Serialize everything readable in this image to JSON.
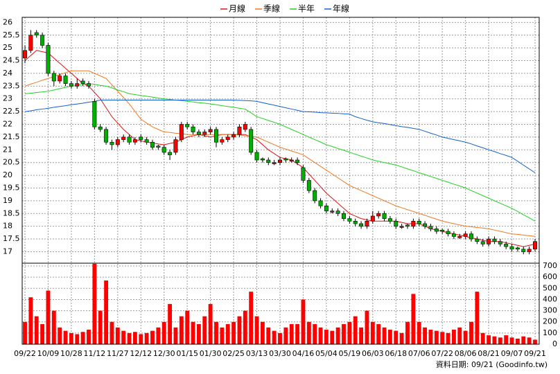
{
  "chart_data": {
    "type": "candlestick",
    "footnote": "資料日期: 09/21 (Goodinfo.tw)",
    "categories": [
      "09/22",
      null,
      null,
      null,
      "10/09",
      null,
      null,
      null,
      "10/28",
      null,
      null,
      null,
      "11/12",
      null,
      null,
      null,
      "11/27",
      null,
      null,
      null,
      "12/12",
      null,
      null,
      null,
      "12/30",
      null,
      null,
      null,
      "01/15",
      null,
      null,
      null,
      "01/30",
      null,
      null,
      null,
      "02/25",
      null,
      null,
      null,
      "03/13",
      null,
      null,
      null,
      "03/30",
      null,
      null,
      null,
      "04/16",
      null,
      null,
      null,
      "05/04",
      null,
      null,
      null,
      "05/19",
      null,
      null,
      null,
      "06/03",
      null,
      null,
      null,
      "06/18",
      null,
      null,
      null,
      "07/06",
      null,
      null,
      null,
      "07/22",
      null,
      null,
      null,
      "08/06",
      null,
      null,
      null,
      "08/21",
      null,
      null,
      null,
      "09/07",
      null,
      null,
      null,
      "09/21"
    ],
    "up_color": "#ff0000",
    "down_color": "#00b000",
    "candles": {
      "open": [
        24.6,
        24.9,
        25.6,
        25.5,
        25.1,
        24.0,
        23.7,
        23.9,
        23.6,
        23.5,
        23.7,
        23.6,
        22.9,
        21.9,
        21.8,
        21.3,
        21.2,
        21.4,
        21.5,
        21.3,
        21.5,
        21.4,
        21.3,
        21.15,
        21.1,
        20.9,
        20.9,
        21.4,
        22.0,
        21.9,
        21.7,
        21.6,
        21.7,
        21.8,
        21.3,
        21.4,
        21.5,
        21.6,
        21.8,
        21.8,
        20.9,
        20.65,
        20.6,
        20.45,
        20.5,
        20.65,
        20.55,
        20.6,
        20.3,
        19.8,
        19.4,
        19.0,
        18.8,
        18.55,
        18.6,
        18.5,
        18.3,
        18.2,
        18.1,
        18.0,
        18.2,
        18.4,
        18.5,
        18.3,
        18.2,
        17.95,
        18.05,
        18.0,
        18.2,
        18.1,
        18.0,
        17.9,
        17.85,
        17.8,
        17.7,
        17.55,
        17.6,
        17.7,
        17.5,
        17.4,
        17.3,
        17.5,
        17.4,
        17.3,
        17.2,
        17.15,
        17.1,
        17.0,
        17.1
      ],
      "high": [
        25.1,
        25.7,
        25.7,
        25.6,
        25.2,
        24.1,
        24.0,
        24.0,
        23.7,
        23.8,
        23.8,
        23.7,
        23.0,
        22.0,
        21.9,
        21.4,
        21.5,
        21.6,
        21.6,
        21.5,
        21.6,
        21.5,
        21.4,
        21.2,
        21.2,
        21.0,
        21.5,
        22.1,
        22.1,
        22.0,
        21.8,
        21.8,
        21.9,
        21.9,
        21.5,
        21.6,
        21.7,
        22.0,
        22.1,
        21.9,
        21.0,
        20.7,
        20.7,
        20.6,
        20.7,
        20.7,
        20.7,
        20.7,
        20.4,
        19.9,
        19.5,
        19.1,
        18.9,
        18.7,
        18.7,
        18.6,
        18.4,
        18.3,
        18.2,
        18.3,
        18.6,
        18.6,
        18.6,
        18.4,
        18.3,
        18.1,
        18.1,
        18.3,
        18.3,
        18.2,
        18.1,
        18.0,
        17.9,
        17.9,
        17.8,
        17.7,
        17.8,
        17.8,
        17.6,
        17.5,
        17.6,
        17.6,
        17.5,
        17.4,
        17.3,
        17.2,
        17.2,
        17.2,
        17.5
      ],
      "low": [
        24.4,
        24.8,
        25.4,
        25.0,
        23.9,
        23.5,
        23.6,
        23.5,
        23.4,
        23.4,
        23.5,
        23.4,
        21.8,
        21.7,
        21.2,
        21.0,
        21.1,
        21.3,
        21.2,
        21.2,
        21.3,
        21.2,
        21.0,
        21.0,
        20.8,
        20.6,
        20.8,
        21.3,
        21.8,
        21.6,
        21.5,
        21.5,
        21.6,
        21.1,
        21.2,
        21.3,
        21.4,
        21.5,
        21.7,
        20.8,
        20.5,
        20.5,
        20.4,
        20.4,
        20.4,
        20.5,
        20.5,
        20.4,
        19.7,
        19.3,
        18.9,
        18.7,
        18.5,
        18.5,
        18.4,
        18.2,
        18.1,
        18.0,
        17.9,
        17.9,
        18.1,
        18.3,
        18.2,
        18.1,
        17.9,
        17.9,
        17.9,
        17.9,
        18.0,
        17.9,
        17.8,
        17.7,
        17.7,
        17.6,
        17.5,
        17.5,
        17.5,
        17.4,
        17.3,
        17.2,
        17.2,
        17.3,
        17.2,
        17.1,
        17.0,
        17.0,
        16.9,
        16.9,
        17.0
      ],
      "close": [
        24.9,
        25.5,
        25.5,
        25.1,
        24.0,
        23.7,
        23.9,
        23.6,
        23.5,
        23.6,
        23.6,
        23.5,
        21.9,
        21.8,
        21.3,
        21.2,
        21.4,
        21.5,
        21.3,
        21.4,
        21.4,
        21.3,
        21.1,
        21.1,
        20.9,
        20.8,
        21.4,
        22.0,
        21.9,
        21.7,
        21.6,
        21.7,
        21.8,
        21.3,
        21.4,
        21.5,
        21.6,
        21.9,
        22.0,
        20.9,
        20.6,
        20.6,
        20.5,
        20.5,
        20.6,
        20.6,
        20.6,
        20.5,
        19.8,
        19.4,
        19.0,
        18.8,
        18.6,
        18.6,
        18.5,
        18.3,
        18.2,
        18.1,
        18.0,
        18.2,
        18.4,
        18.5,
        18.3,
        18.2,
        18.0,
        18.0,
        18.0,
        18.2,
        18.1,
        18.0,
        17.9,
        17.8,
        17.8,
        17.7,
        17.6,
        17.6,
        17.7,
        17.5,
        17.4,
        17.3,
        17.5,
        17.4,
        17.3,
        17.2,
        17.1,
        17.1,
        17.0,
        17.1,
        17.4
      ]
    },
    "series": [
      {
        "name": "月線",
        "color": "#e01010",
        "values": [
          24.5,
          24.7,
          24.9,
          24.85,
          24.8,
          24.6,
          24.4,
          24.2,
          24.0,
          23.8,
          23.6,
          23.5,
          23.25,
          23.0,
          22.65,
          22.3,
          22.05,
          21.8,
          21.6,
          21.4,
          21.35,
          21.3,
          21.27,
          21.23,
          21.2,
          21.25,
          21.3,
          21.4,
          21.5,
          21.55,
          21.6,
          21.55,
          21.5,
          21.55,
          21.6,
          21.6,
          21.6,
          21.6,
          21.6,
          21.5,
          21.4,
          21.2,
          21.0,
          20.85,
          20.7,
          20.65,
          20.6,
          20.45,
          20.3,
          20.05,
          19.8,
          19.55,
          19.3,
          19.1,
          18.9,
          18.7,
          18.5,
          18.4,
          18.3,
          18.25,
          18.2,
          18.2,
          18.2,
          18.2,
          18.2,
          18.15,
          18.1,
          18.1,
          18.1,
          18.0,
          17.9,
          17.85,
          17.8,
          17.75,
          17.7,
          17.65,
          17.6,
          17.55,
          17.5,
          17.45,
          17.4,
          17.4,
          17.4,
          17.35,
          17.3,
          17.25,
          17.2,
          17.25,
          17.3
        ]
      },
      {
        "name": "季線",
        "color": "#f07820",
        "values": [
          23.5,
          23.58,
          23.65,
          23.73,
          23.8,
          23.88,
          23.95,
          24.03,
          24.1,
          24.1,
          24.1,
          24.1,
          24.0,
          23.9,
          23.8,
          23.55,
          23.3,
          23.05,
          22.8,
          22.5,
          22.2,
          22.05,
          21.9,
          21.8,
          21.7,
          21.68,
          21.65,
          21.63,
          21.6,
          21.6,
          21.6,
          21.6,
          21.6,
          21.6,
          21.6,
          21.6,
          21.6,
          21.58,
          21.55,
          21.53,
          21.5,
          21.4,
          21.3,
          21.2,
          21.1,
          21.03,
          20.95,
          20.88,
          20.8,
          20.65,
          20.5,
          20.35,
          20.2,
          20.05,
          19.9,
          19.75,
          19.6,
          19.5,
          19.4,
          19.3,
          19.2,
          19.1,
          19.0,
          18.9,
          18.8,
          18.73,
          18.65,
          18.58,
          18.5,
          18.43,
          18.35,
          18.28,
          18.2,
          18.15,
          18.1,
          18.05,
          18.0,
          17.98,
          17.95,
          17.93,
          17.9,
          17.85,
          17.8,
          17.75,
          17.7,
          17.68,
          17.65,
          17.63,
          17.6
        ]
      },
      {
        "name": "半年",
        "color": "#20d020",
        "values": [
          23.2,
          23.22,
          23.25,
          23.27,
          23.3,
          23.35,
          23.4,
          23.45,
          23.5,
          23.53,
          23.57,
          23.6,
          23.57,
          23.53,
          23.5,
          23.43,
          23.35,
          23.28,
          23.2,
          23.17,
          23.13,
          23.1,
          23.07,
          23.03,
          23.0,
          22.98,
          22.95,
          22.93,
          22.9,
          22.88,
          22.85,
          22.83,
          22.8,
          22.77,
          22.73,
          22.7,
          22.67,
          22.63,
          22.6,
          22.45,
          22.3,
          22.23,
          22.15,
          22.08,
          22.0,
          21.9,
          21.8,
          21.7,
          21.6,
          21.5,
          21.4,
          21.3,
          21.2,
          21.13,
          21.05,
          20.98,
          20.9,
          20.83,
          20.75,
          20.68,
          20.6,
          20.55,
          20.5,
          20.45,
          20.4,
          20.33,
          20.25,
          20.18,
          20.1,
          20.03,
          19.95,
          19.88,
          19.8,
          19.73,
          19.65,
          19.58,
          19.5,
          19.4,
          19.3,
          19.2,
          19.1,
          19.0,
          18.9,
          18.8,
          18.7,
          18.58,
          18.45,
          18.33,
          18.2
        ]
      },
      {
        "name": "年線",
        "color": "#1060d0",
        "values": [
          22.5,
          22.53,
          22.57,
          22.6,
          22.63,
          22.67,
          22.7,
          22.73,
          22.77,
          22.8,
          22.83,
          22.87,
          22.9,
          22.95,
          22.95,
          22.95,
          22.95,
          22.95,
          22.95,
          22.95,
          22.95,
          22.95,
          22.95,
          22.95,
          22.95,
          22.95,
          22.95,
          22.95,
          22.95,
          22.95,
          22.95,
          22.95,
          22.95,
          22.95,
          22.95,
          22.95,
          22.95,
          22.94,
          22.93,
          22.92,
          22.9,
          22.85,
          22.8,
          22.75,
          22.7,
          22.65,
          22.6,
          22.55,
          22.5,
          22.49,
          22.48,
          22.46,
          22.45,
          22.44,
          22.43,
          22.41,
          22.4,
          22.3,
          22.23,
          22.16,
          22.1,
          22.06,
          22.03,
          21.99,
          21.95,
          21.91,
          21.88,
          21.84,
          21.8,
          21.73,
          21.65,
          21.58,
          21.5,
          21.45,
          21.4,
          21.35,
          21.3,
          21.23,
          21.15,
          21.08,
          21.0,
          20.93,
          20.85,
          20.78,
          20.7,
          20.55,
          20.4,
          20.25,
          20.1
        ]
      }
    ],
    "volume": {
      "color": "#ff0000",
      "axis": "y2",
      "values": [
        200,
        420,
        250,
        180,
        480,
        300,
        150,
        120,
        100,
        90,
        110,
        130,
        720,
        300,
        570,
        200,
        150,
        120,
        100,
        110,
        90,
        100,
        120,
        150,
        200,
        360,
        150,
        250,
        300,
        200,
        180,
        250,
        360,
        200,
        150,
        180,
        200,
        250,
        300,
        470,
        250,
        200,
        150,
        120,
        100,
        150,
        180,
        180,
        400,
        200,
        180,
        150,
        130,
        120,
        150,
        180,
        200,
        250,
        150,
        300,
        200,
        180,
        150,
        130,
        120,
        100,
        200,
        450,
        200,
        150,
        130,
        120,
        110,
        100,
        130,
        150,
        120,
        200,
        470,
        100,
        80,
        70,
        60,
        80,
        60,
        50,
        70,
        60,
        40
      ]
    },
    "ylim": [
      16.55,
      26.2
    ],
    "yticks": [
      17,
      17.5,
      18,
      18.5,
      19,
      19.5,
      20,
      20.5,
      21,
      21.5,
      22,
      22.5,
      23,
      23.5,
      24,
      24.5,
      25,
      25.5,
      26
    ],
    "y2lim": [
      0,
      725
    ],
    "y2ticks": [
      0,
      100,
      200,
      300,
      400,
      500,
      600,
      700
    ],
    "grid": true
  }
}
